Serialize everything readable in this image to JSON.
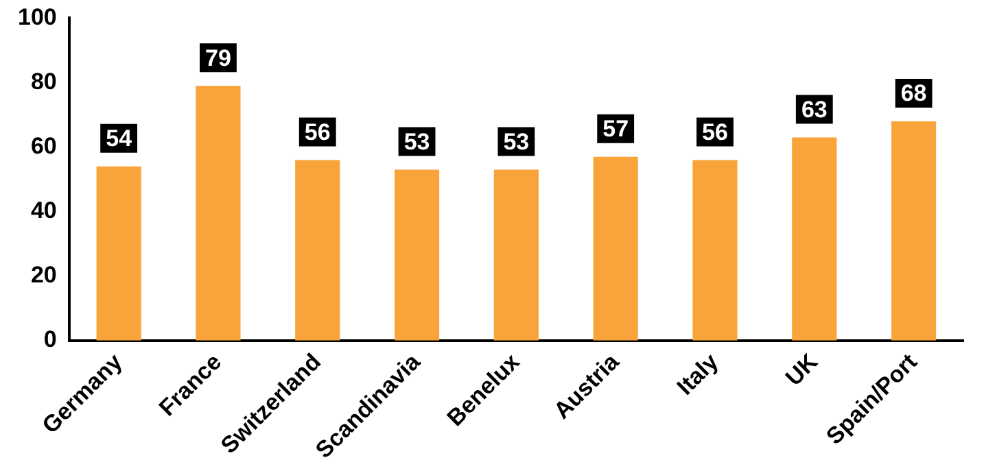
{
  "chart_data": {
    "type": "bar",
    "categories": [
      "Germany",
      "France",
      "Switzerland",
      "Scandinavia",
      "Benelux",
      "Austria",
      "Italy",
      "UK",
      "Spain/Port"
    ],
    "values": [
      54,
      79,
      56,
      53,
      53,
      57,
      56,
      63,
      68
    ],
    "color": "#f8a43a",
    "ylim": [
      0,
      100
    ],
    "yticks": [
      0,
      20,
      40,
      60,
      80,
      100
    ],
    "grid": false,
    "legend": false,
    "data_labels": true
  }
}
